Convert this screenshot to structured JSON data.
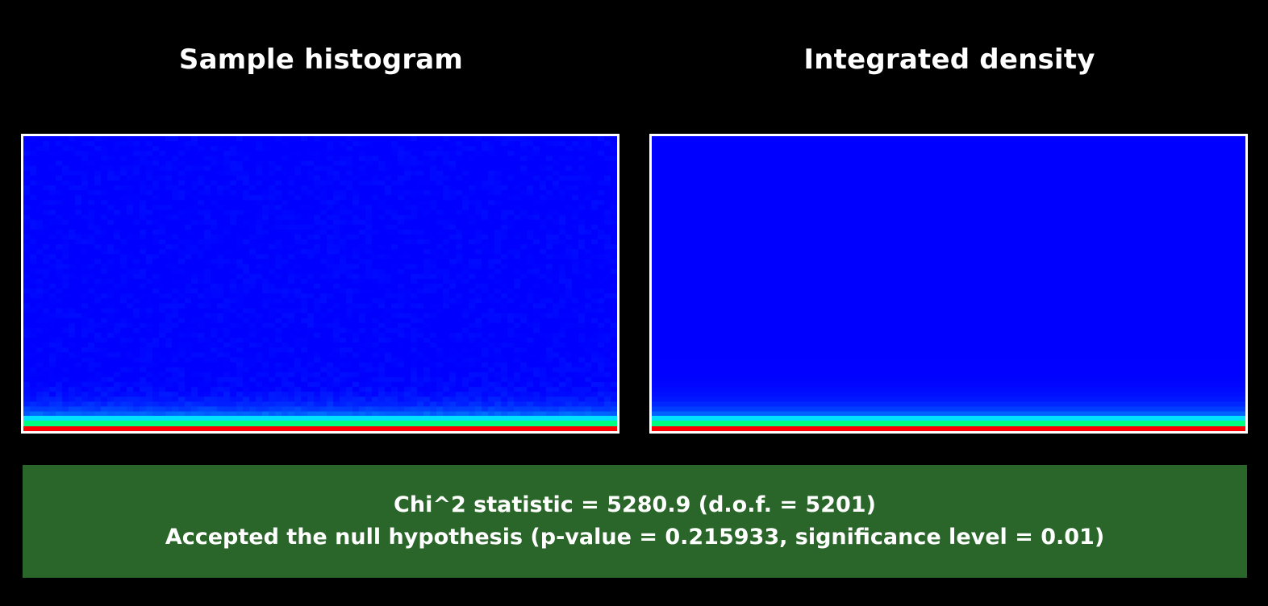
{
  "panels": {
    "left_title": "Sample histogram",
    "right_title": "Integrated density"
  },
  "result": {
    "line1": "Chi^2 statistic = 5280.9 (d.o.f. = 5201)",
    "line2": "Accepted the null hypothesis (p-value = 0.215933, significance level = 0.01)",
    "box_color": "#2a6629"
  },
  "chart_data": [
    {
      "type": "heatmap",
      "title": "Sample histogram",
      "colormap": [
        "#0000ff",
        "#0066ff",
        "#00d0ff",
        "#00ff80",
        "#ff0000"
      ],
      "description_values": "density concentrated near bottom edge; red at the bottom row, green/cyan just above, fading to uniform blue",
      "noisy": true,
      "grid": false
    },
    {
      "type": "heatmap",
      "title": "Integrated density",
      "colormap": [
        "#0000ff",
        "#0066ff",
        "#00d0ff",
        "#00ff80",
        "#ff0000"
      ],
      "noisy": false,
      "grid": false
    }
  ]
}
